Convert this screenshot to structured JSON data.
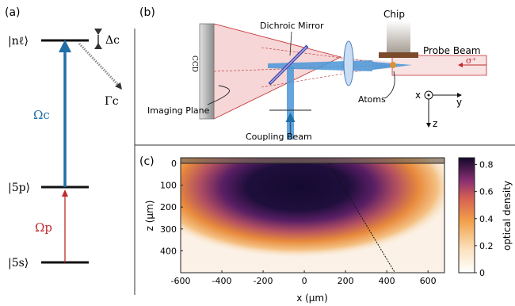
{
  "panel_labels": {
    "a": "(a)",
    "b": "(b)",
    "c": "(c)"
  },
  "levels": {
    "nl": "|nℓ⟩",
    "p5": "|5p⟩",
    "s5": "|5s⟩",
    "delta_c": "Δc",
    "gamma_c": "Γc",
    "omega_c": "Ωc",
    "omega_p": "Ωp"
  },
  "setup": {
    "ccd": "CCD",
    "dichroic": "Dichroic Mirror",
    "chip": "Chip",
    "probe": "Probe Beam",
    "sigma": "σ⁺",
    "imaging_plane": "Imaging Plane",
    "coupling": "Coupling Beam",
    "atoms": "Atoms",
    "axis_x": "x",
    "axis_y": "y",
    "axis_z": "z"
  },
  "colors": {
    "coupling": "#1f6fa8",
    "probe": "#c0282d",
    "beam_blue": "#3d8fd6"
  },
  "chart_data": {
    "type": "heatmap",
    "xlabel": "x (μm)",
    "ylabel": "z (μm)",
    "xlim": [
      -600,
      680
    ],
    "ylim": [
      0,
      500
    ],
    "xticks": [
      "-600",
      "-400",
      "-200",
      "0",
      "200",
      "400",
      "600"
    ],
    "yticks": [
      "0",
      "100",
      "200",
      "300",
      "400"
    ],
    "colorbar": {
      "label": "optical density",
      "range": [
        0,
        0.85
      ],
      "ticks": [
        "0",
        "0.2",
        "0.4",
        "0.6",
        "0.8"
      ]
    },
    "cloud_center": {
      "x": -10,
      "z": 120
    },
    "peak_od": 0.85,
    "dashed_line": [
      [
        120,
        0
      ],
      [
        440,
        500
      ]
    ]
  }
}
